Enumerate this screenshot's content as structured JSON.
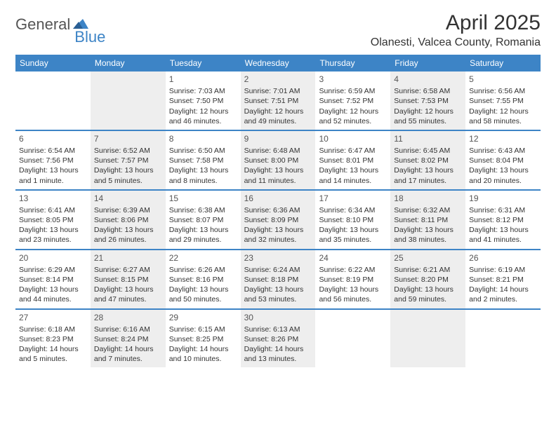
{
  "logo": {
    "part1": "General",
    "part2": "Blue"
  },
  "title": "April 2025",
  "location": "Olanesti, Valcea County, Romania",
  "colors": {
    "header_bg": "#3d84c6",
    "header_text": "#ffffff",
    "row_divider": "#3d84c6",
    "shade_bg": "#eeeeee",
    "body_text": "#333333",
    "daynum_text": "#555555",
    "page_bg": "#ffffff"
  },
  "typography": {
    "title_fontsize": 30,
    "location_fontsize": 16,
    "weekday_fontsize": 12,
    "daynum_fontsize": 12,
    "body_fontsize": 10.5
  },
  "weekdays": [
    "Sunday",
    "Monday",
    "Tuesday",
    "Wednesday",
    "Thursday",
    "Friday",
    "Saturday"
  ],
  "weeks": [
    [
      {
        "empty": true,
        "shade": false
      },
      {
        "empty": true,
        "shade": true
      },
      {
        "num": "1",
        "shade": false,
        "sunrise": "Sunrise: 7:03 AM",
        "sunset": "Sunset: 7:50 PM",
        "daylight": "Daylight: 12 hours and 46 minutes."
      },
      {
        "num": "2",
        "shade": true,
        "sunrise": "Sunrise: 7:01 AM",
        "sunset": "Sunset: 7:51 PM",
        "daylight": "Daylight: 12 hours and 49 minutes."
      },
      {
        "num": "3",
        "shade": false,
        "sunrise": "Sunrise: 6:59 AM",
        "sunset": "Sunset: 7:52 PM",
        "daylight": "Daylight: 12 hours and 52 minutes."
      },
      {
        "num": "4",
        "shade": true,
        "sunrise": "Sunrise: 6:58 AM",
        "sunset": "Sunset: 7:53 PM",
        "daylight": "Daylight: 12 hours and 55 minutes."
      },
      {
        "num": "5",
        "shade": false,
        "sunrise": "Sunrise: 6:56 AM",
        "sunset": "Sunset: 7:55 PM",
        "daylight": "Daylight: 12 hours and 58 minutes."
      }
    ],
    [
      {
        "num": "6",
        "shade": false,
        "sunrise": "Sunrise: 6:54 AM",
        "sunset": "Sunset: 7:56 PM",
        "daylight": "Daylight: 13 hours and 1 minute."
      },
      {
        "num": "7",
        "shade": true,
        "sunrise": "Sunrise: 6:52 AM",
        "sunset": "Sunset: 7:57 PM",
        "daylight": "Daylight: 13 hours and 5 minutes."
      },
      {
        "num": "8",
        "shade": false,
        "sunrise": "Sunrise: 6:50 AM",
        "sunset": "Sunset: 7:58 PM",
        "daylight": "Daylight: 13 hours and 8 minutes."
      },
      {
        "num": "9",
        "shade": true,
        "sunrise": "Sunrise: 6:48 AM",
        "sunset": "Sunset: 8:00 PM",
        "daylight": "Daylight: 13 hours and 11 minutes."
      },
      {
        "num": "10",
        "shade": false,
        "sunrise": "Sunrise: 6:47 AM",
        "sunset": "Sunset: 8:01 PM",
        "daylight": "Daylight: 13 hours and 14 minutes."
      },
      {
        "num": "11",
        "shade": true,
        "sunrise": "Sunrise: 6:45 AM",
        "sunset": "Sunset: 8:02 PM",
        "daylight": "Daylight: 13 hours and 17 minutes."
      },
      {
        "num": "12",
        "shade": false,
        "sunrise": "Sunrise: 6:43 AM",
        "sunset": "Sunset: 8:04 PM",
        "daylight": "Daylight: 13 hours and 20 minutes."
      }
    ],
    [
      {
        "num": "13",
        "shade": false,
        "sunrise": "Sunrise: 6:41 AM",
        "sunset": "Sunset: 8:05 PM",
        "daylight": "Daylight: 13 hours and 23 minutes."
      },
      {
        "num": "14",
        "shade": true,
        "sunrise": "Sunrise: 6:39 AM",
        "sunset": "Sunset: 8:06 PM",
        "daylight": "Daylight: 13 hours and 26 minutes."
      },
      {
        "num": "15",
        "shade": false,
        "sunrise": "Sunrise: 6:38 AM",
        "sunset": "Sunset: 8:07 PM",
        "daylight": "Daylight: 13 hours and 29 minutes."
      },
      {
        "num": "16",
        "shade": true,
        "sunrise": "Sunrise: 6:36 AM",
        "sunset": "Sunset: 8:09 PM",
        "daylight": "Daylight: 13 hours and 32 minutes."
      },
      {
        "num": "17",
        "shade": false,
        "sunrise": "Sunrise: 6:34 AM",
        "sunset": "Sunset: 8:10 PM",
        "daylight": "Daylight: 13 hours and 35 minutes."
      },
      {
        "num": "18",
        "shade": true,
        "sunrise": "Sunrise: 6:32 AM",
        "sunset": "Sunset: 8:11 PM",
        "daylight": "Daylight: 13 hours and 38 minutes."
      },
      {
        "num": "19",
        "shade": false,
        "sunrise": "Sunrise: 6:31 AM",
        "sunset": "Sunset: 8:12 PM",
        "daylight": "Daylight: 13 hours and 41 minutes."
      }
    ],
    [
      {
        "num": "20",
        "shade": false,
        "sunrise": "Sunrise: 6:29 AM",
        "sunset": "Sunset: 8:14 PM",
        "daylight": "Daylight: 13 hours and 44 minutes."
      },
      {
        "num": "21",
        "shade": true,
        "sunrise": "Sunrise: 6:27 AM",
        "sunset": "Sunset: 8:15 PM",
        "daylight": "Daylight: 13 hours and 47 minutes."
      },
      {
        "num": "22",
        "shade": false,
        "sunrise": "Sunrise: 6:26 AM",
        "sunset": "Sunset: 8:16 PM",
        "daylight": "Daylight: 13 hours and 50 minutes."
      },
      {
        "num": "23",
        "shade": true,
        "sunrise": "Sunrise: 6:24 AM",
        "sunset": "Sunset: 8:18 PM",
        "daylight": "Daylight: 13 hours and 53 minutes."
      },
      {
        "num": "24",
        "shade": false,
        "sunrise": "Sunrise: 6:22 AM",
        "sunset": "Sunset: 8:19 PM",
        "daylight": "Daylight: 13 hours and 56 minutes."
      },
      {
        "num": "25",
        "shade": true,
        "sunrise": "Sunrise: 6:21 AM",
        "sunset": "Sunset: 8:20 PM",
        "daylight": "Daylight: 13 hours and 59 minutes."
      },
      {
        "num": "26",
        "shade": false,
        "sunrise": "Sunrise: 6:19 AM",
        "sunset": "Sunset: 8:21 PM",
        "daylight": "Daylight: 14 hours and 2 minutes."
      }
    ],
    [
      {
        "num": "27",
        "shade": false,
        "sunrise": "Sunrise: 6:18 AM",
        "sunset": "Sunset: 8:23 PM",
        "daylight": "Daylight: 14 hours and 5 minutes."
      },
      {
        "num": "28",
        "shade": true,
        "sunrise": "Sunrise: 6:16 AM",
        "sunset": "Sunset: 8:24 PM",
        "daylight": "Daylight: 14 hours and 7 minutes."
      },
      {
        "num": "29",
        "shade": false,
        "sunrise": "Sunrise: 6:15 AM",
        "sunset": "Sunset: 8:25 PM",
        "daylight": "Daylight: 14 hours and 10 minutes."
      },
      {
        "num": "30",
        "shade": true,
        "sunrise": "Sunrise: 6:13 AM",
        "sunset": "Sunset: 8:26 PM",
        "daylight": "Daylight: 14 hours and 13 minutes."
      },
      {
        "empty": true,
        "shade": false
      },
      {
        "empty": true,
        "shade": true
      },
      {
        "empty": true,
        "shade": false
      }
    ]
  ]
}
